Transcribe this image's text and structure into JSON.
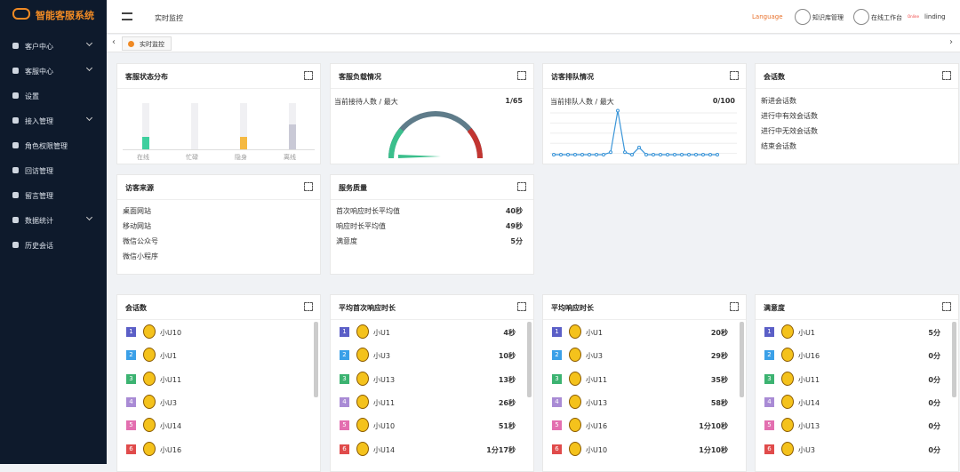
{
  "header": {
    "logo": "智能客服系统",
    "breadcrumb": "实时监控",
    "language": "Language",
    "links": [
      "知识库管理",
      "在线工作台"
    ],
    "status": "Online",
    "user": "linding"
  },
  "sidebar": {
    "menu": [
      "客户中心",
      "客服中心",
      "设置",
      "接入管理",
      "角色权限管理",
      "回访管理",
      "留言管理",
      "数据统计",
      "历史会话"
    ]
  },
  "tabs": [
    "实时监控"
  ],
  "cards": {
    "status": {
      "title": "客服状态分布",
      "categories": [
        "在线",
        "忙碌",
        "隐身",
        "离线"
      ],
      "values": [
        1,
        0,
        1,
        2
      ]
    },
    "load": {
      "title": "客服负载情况",
      "label": "当前接待人数 / 最大",
      "value": "1/65"
    },
    "queue": {
      "title": "访客排队情况",
      "label": "当前排队人数 / 最大",
      "value": "0/100",
      "values": [
        0,
        0,
        0,
        0,
        0,
        0,
        0,
        0,
        0.3,
        5.5,
        0.3,
        0,
        0.9,
        0,
        0,
        0,
        0,
        0,
        0,
        0,
        0,
        0,
        0,
        0
      ]
    },
    "sessions": {
      "title": "会话数",
      "items": [
        "新进会话数",
        "进行中有效会话数",
        "进行中无效会话数",
        "结束会话数"
      ]
    },
    "source": {
      "title": "访客来源",
      "items": [
        "桌面网站",
        "移动网站",
        "微信公众号",
        "微信小程序"
      ]
    },
    "quality": {
      "title": "服务质量",
      "items": [
        [
          "首次响应时长平均值",
          "40秒"
        ],
        [
          "响应时长平均值",
          "49秒"
        ],
        [
          "满意度",
          "5分"
        ]
      ]
    }
  },
  "rankings": [
    {
      "title": "会话数",
      "rows": [
        [
          "1",
          "小U10",
          ""
        ],
        [
          "2",
          "小U1",
          ""
        ],
        [
          "3",
          "小U11",
          ""
        ],
        [
          "4",
          "小U3",
          ""
        ],
        [
          "5",
          "小U14",
          ""
        ],
        [
          "6",
          "小U16",
          ""
        ]
      ]
    },
    {
      "title": "平均首次响应时长",
      "rows": [
        [
          "1",
          "小U1",
          "4秒"
        ],
        [
          "2",
          "小U3",
          "10秒"
        ],
        [
          "3",
          "小U13",
          "13秒"
        ],
        [
          "4",
          "小U11",
          "26秒"
        ],
        [
          "5",
          "小U10",
          "51秒"
        ],
        [
          "6",
          "小U14",
          "1分17秒"
        ]
      ]
    },
    {
      "title": "平均响应时长",
      "rows": [
        [
          "1",
          "小U1",
          "20秒"
        ],
        [
          "2",
          "小U3",
          "29秒"
        ],
        [
          "3",
          "小U11",
          "35秒"
        ],
        [
          "4",
          "小U13",
          "58秒"
        ],
        [
          "5",
          "小U16",
          "1分10秒"
        ],
        [
          "6",
          "小U10",
          "1分10秒"
        ]
      ]
    },
    {
      "title": "满意度",
      "rows": [
        [
          "1",
          "小U1",
          "5分"
        ],
        [
          "2",
          "小U16",
          "0分"
        ],
        [
          "3",
          "小U11",
          "0分"
        ],
        [
          "4",
          "小U14",
          "0分"
        ],
        [
          "5",
          "小U13",
          "0分"
        ],
        [
          "6",
          "小U3",
          "0分"
        ]
      ]
    }
  ]
}
